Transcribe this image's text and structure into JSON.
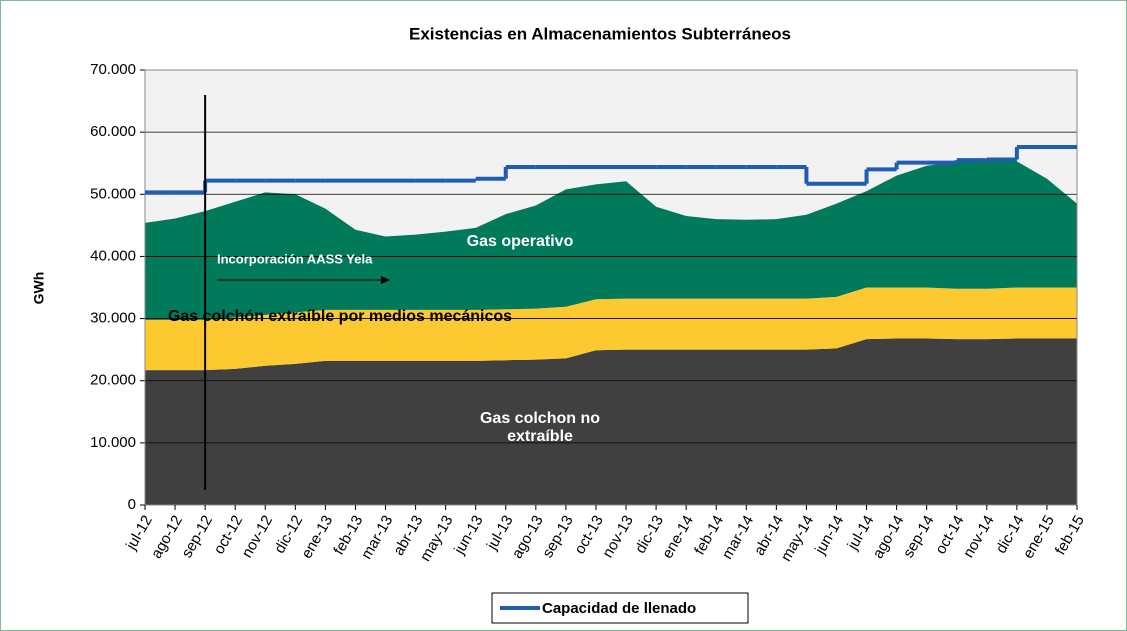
{
  "chart_data": {
    "type": "stacked-area-line",
    "title": "Existencias en Almacenamientos Subterráneos",
    "y_label": "GWh",
    "categories": [
      "jul-12",
      "ago-12",
      "sep-12",
      "oct-12",
      "nov-12",
      "dic-12",
      "ene-13",
      "feb-13",
      "mar-13",
      "abr-13",
      "may-13",
      "jun-13",
      "jul-13",
      "ago-13",
      "sep-13",
      "oct-13",
      "nov-13",
      "dic-13",
      "ene-14",
      "feb-14",
      "mar-14",
      "abr-14",
      "may-14",
      "jun-14",
      "jul-14",
      "ago-14",
      "sep-14",
      "oct-14",
      "nov-14",
      "dic-14",
      "ene-15",
      "feb-15"
    ],
    "ylim": [
      0,
      70000
    ],
    "yticks": [
      {
        "value": 0,
        "label": "0"
      },
      {
        "value": 10000,
        "label": "10.000"
      },
      {
        "value": 20000,
        "label": "20.000"
      },
      {
        "value": 30000,
        "label": "30.000"
      },
      {
        "value": 40000,
        "label": "40.000"
      },
      {
        "value": 50000,
        "label": "50.000"
      },
      {
        "value": 60000,
        "label": "60.000"
      },
      {
        "value": 70000,
        "label": "70.000"
      }
    ],
    "grid": true,
    "series": [
      {
        "name": "Gas colchon no extraíble",
        "color": "#404040",
        "stack": true,
        "values": [
          21700,
          21700,
          21700,
          21900,
          22400,
          22700,
          23200,
          23200,
          23200,
          23200,
          23200,
          23200,
          23300,
          23400,
          23600,
          24900,
          25000,
          25000,
          25000,
          25000,
          25000,
          25000,
          25000,
          25200,
          26700,
          26800,
          26800,
          26700,
          26700,
          26800,
          26800,
          26800
        ]
      },
      {
        "name": "Gas colchón extraíble por medios mecánicos",
        "color": "#fcc930",
        "stack": true,
        "values": [
          8100,
          8100,
          8100,
          8300,
          8200,
          8300,
          8200,
          8200,
          8200,
          8200,
          8200,
          8200,
          8200,
          8200,
          8300,
          8200,
          8200,
          8200,
          8200,
          8200,
          8200,
          8200,
          8200,
          8300,
          8300,
          8200,
          8200,
          8100,
          8100,
          8200,
          8200,
          8200
        ]
      },
      {
        "name": "Gas operativo",
        "color": "#007a5a",
        "stack": true,
        "values": [
          15600,
          16300,
          17500,
          18600,
          19700,
          19000,
          16300,
          12900,
          11800,
          12100,
          12600,
          13200,
          15300,
          16600,
          18900,
          18500,
          18900,
          14800,
          13300,
          12800,
          12700,
          12800,
          13500,
          15000,
          15500,
          18000,
          19600,
          20400,
          20700,
          20300,
          17500,
          13500
        ]
      },
      {
        "name": "Capacidad de llenado",
        "color": "#1f5cb5",
        "stack": false,
        "values": [
          50300,
          50300,
          52200,
          52200,
          52200,
          52200,
          52200,
          52200,
          52200,
          52200,
          52200,
          52500,
          54400,
          54400,
          54400,
          54400,
          54400,
          54400,
          54400,
          54400,
          54400,
          54400,
          51700,
          51700,
          54000,
          55100,
          55100,
          55500,
          55600,
          57600,
          57600,
          57600
        ]
      }
    ],
    "annotations": [
      "Incorporación AASS Yela"
    ]
  }
}
